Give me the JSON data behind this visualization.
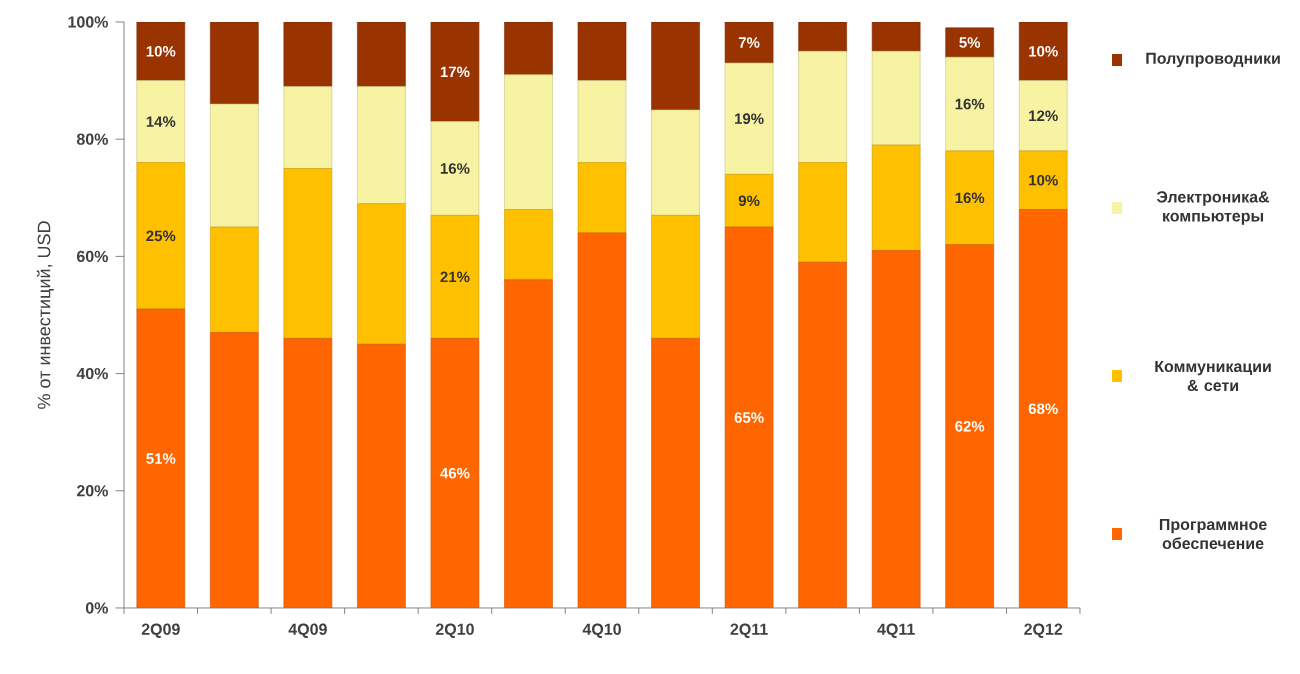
{
  "chart_data": {
    "type": "bar",
    "stacked": true,
    "ylabel": "% от инвестиций, USD",
    "categories": [
      "2Q09",
      null,
      "4Q09",
      null,
      "2Q10",
      null,
      "4Q10",
      null,
      "2Q11",
      null,
      "4Q11",
      null,
      "2Q12"
    ],
    "ylim": [
      0,
      100
    ],
    "yticks": [
      {
        "value": 0,
        "label": "0%"
      },
      {
        "value": 20,
        "label": "20%"
      },
      {
        "value": 40,
        "label": "40%"
      },
      {
        "value": 60,
        "label": "60%"
      },
      {
        "value": 80,
        "label": "80%"
      },
      {
        "value": 100,
        "label": "100%"
      }
    ],
    "legend": "right",
    "grid": false,
    "series": [
      {
        "name": "Программное обеспечение",
        "color": "#ff6600",
        "values": [
          51,
          47,
          46,
          45,
          46,
          56,
          64,
          46,
          65,
          59,
          61,
          62,
          68
        ],
        "value_labels": [
          "51%",
          null,
          null,
          null,
          "46%",
          null,
          null,
          null,
          "65%",
          null,
          null,
          "62%",
          "68%"
        ]
      },
      {
        "name": "Коммуникации & сети",
        "color": "#ffc000",
        "values": [
          25,
          18,
          29,
          24,
          21,
          12,
          12,
          21,
          9,
          17,
          18,
          16,
          10
        ],
        "value_labels": [
          "25%",
          null,
          null,
          null,
          "21%",
          null,
          null,
          null,
          "9%",
          null,
          null,
          "16%",
          "10%"
        ]
      },
      {
        "name": "Электроника& компьютеры",
        "color": "#f7f3a3",
        "values": [
          14,
          21,
          14,
          20,
          16,
          23,
          14,
          18,
          19,
          19,
          16,
          16,
          12
        ],
        "value_labels": [
          "14%",
          null,
          null,
          null,
          "16%",
          null,
          null,
          null,
          "19%",
          null,
          null,
          "16%",
          "12%"
        ]
      },
      {
        "name": "Полупроводники",
        "color": "#993300",
        "values": [
          10,
          14,
          11,
          11,
          17,
          9,
          10,
          15,
          7,
          5,
          5,
          5,
          10
        ],
        "value_labels": [
          "10%",
          null,
          null,
          null,
          "17%",
          null,
          null,
          null,
          "7%",
          null,
          null,
          "5%",
          "10%"
        ]
      }
    ]
  }
}
